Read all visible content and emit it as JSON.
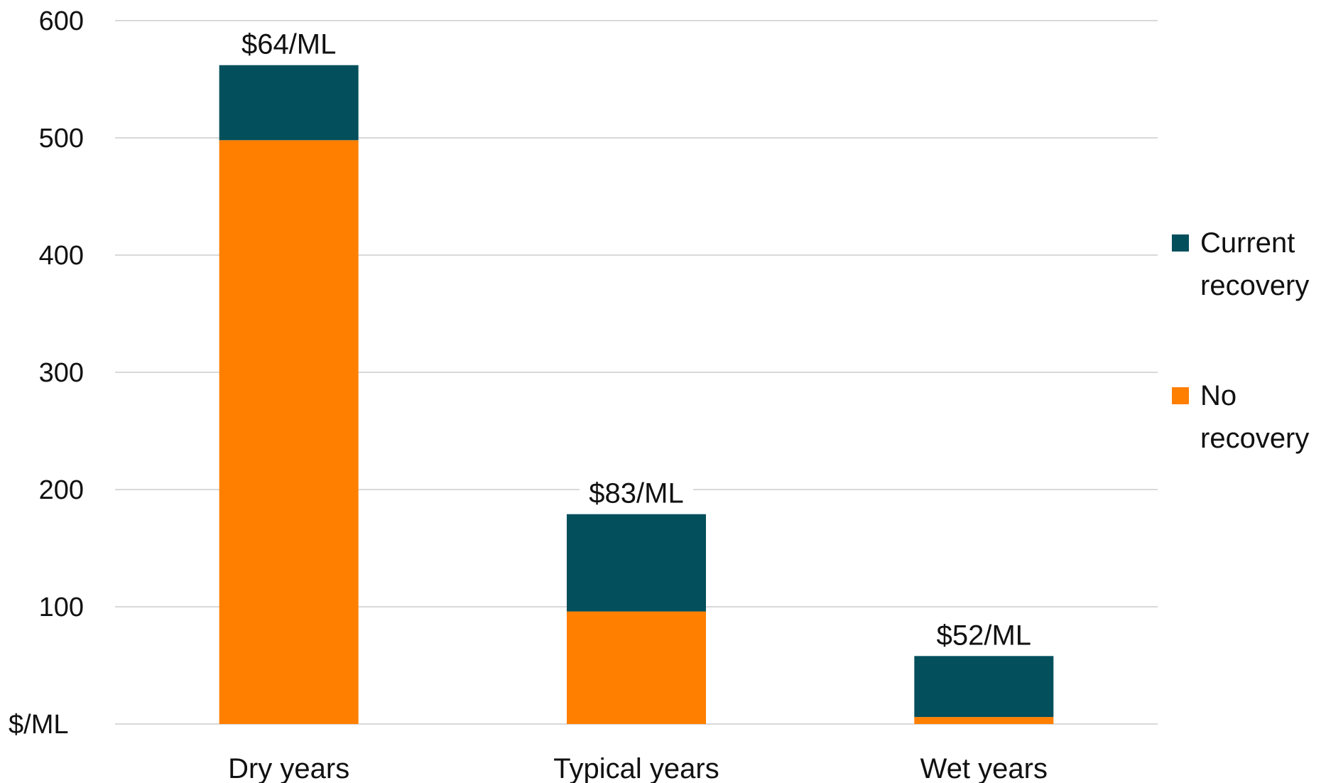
{
  "chart_data": {
    "type": "bar",
    "stacked": true,
    "categories": [
      "Dry years",
      "Typical years",
      "Wet years"
    ],
    "series": [
      {
        "name": "No recovery",
        "values": [
          498,
          96,
          6
        ],
        "color": "#ff7f00"
      },
      {
        "name": "Current recovery",
        "values": [
          64,
          83,
          52
        ],
        "color": "#034f5c"
      }
    ],
    "data_labels": [
      "$64/ML",
      "$83/ML",
      "$52/ML"
    ],
    "y_unit_label": "$/ML",
    "yticks": [
      "100",
      "200",
      "300",
      "400",
      "500",
      "600"
    ],
    "ylim": [
      0,
      600
    ],
    "grid": true,
    "legend": {
      "position": "right",
      "entries": [
        {
          "lines": [
            "Current",
            "recovery"
          ],
          "color": "#034f5c"
        },
        {
          "lines": [
            "No",
            "recovery"
          ],
          "color": "#ff7f00"
        }
      ]
    },
    "title": "",
    "xlabel": "",
    "ylabel": ""
  }
}
